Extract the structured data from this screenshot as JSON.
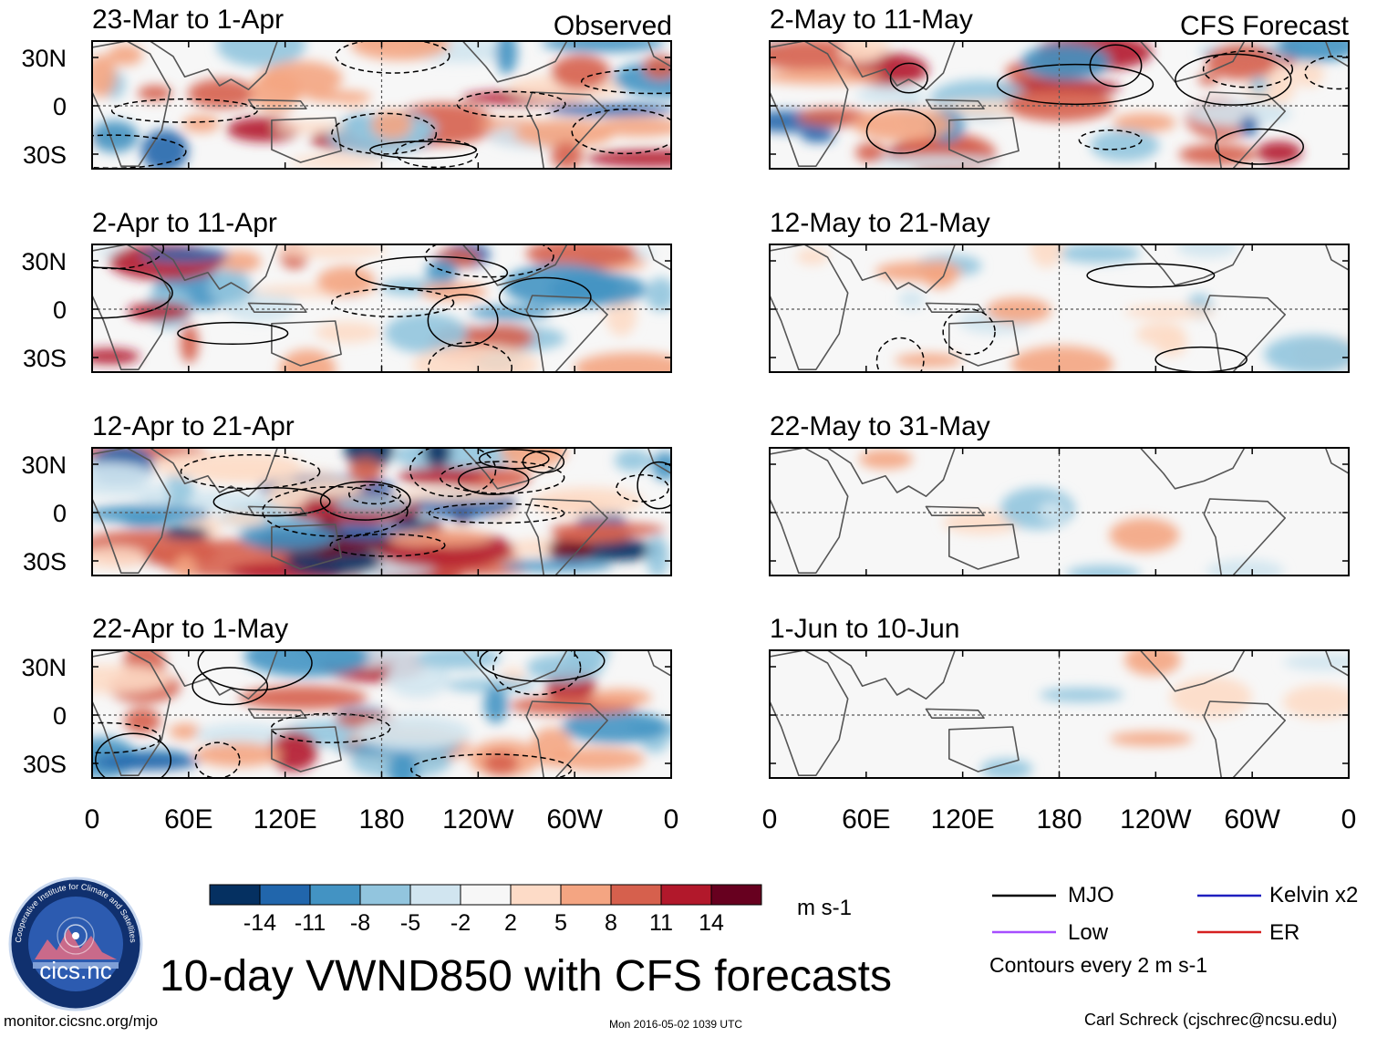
{
  "figure": {
    "title": "10-day VWND850 with CFS forecasts",
    "website": "monitor.cicsnc.org/mjo",
    "timestamp": "Mon 2016-05-02 1039 UTC",
    "author": "Carl Schreck (cjschrec@ncsu.edu)",
    "logo_text": "cics.nc",
    "logo_ring_text": "Cooperative Institute for Climate and Satellites",
    "variable": "VWND850",
    "units": "m s-1"
  },
  "columns": {
    "observed_label": "Observed",
    "forecast_label": "CFS Forecast"
  },
  "axes": {
    "lat_ticks": [
      "30N",
      "0",
      "30S"
    ],
    "lon_ticks": [
      "0",
      "60E",
      "120E",
      "180",
      "120W",
      "60W",
      "0"
    ]
  },
  "colorbar": {
    "labels": [
      "-14",
      "-11",
      "-8",
      "-5",
      "-2",
      "2",
      "5",
      "8",
      "11",
      "14"
    ],
    "colors": [
      "#053061",
      "#2166ac",
      "#4393c3",
      "#92c5de",
      "#d1e5f0",
      "#f7f7f7",
      "#fddbc7",
      "#f4a582",
      "#d6604d",
      "#b2182b",
      "#67001f"
    ]
  },
  "legend": {
    "items": [
      {
        "label": "MJO",
        "color": "#000000"
      },
      {
        "label": "Kelvin x2",
        "color": "#1f1fbf"
      },
      {
        "label": "Low",
        "color": "#a64dff"
      },
      {
        "label": "ER",
        "color": "#d62020"
      }
    ],
    "contour_note": "Contours every 2 m s-1"
  },
  "chart_data": {
    "type": "heatmap",
    "panels": [
      {
        "period": "23-Mar to 1-Apr",
        "kind": "observed",
        "anomaly_strength": "moderate"
      },
      {
        "period": "2-Apr to 11-Apr",
        "kind": "observed",
        "anomaly_strength": "moderate"
      },
      {
        "period": "12-Apr to 21-Apr",
        "kind": "observed",
        "anomaly_strength": "strong"
      },
      {
        "period": "22-Apr to 1-May",
        "kind": "observed",
        "anomaly_strength": "moderate"
      },
      {
        "period": "2-May to 11-May",
        "kind": "forecast",
        "anomaly_strength": "moderate"
      },
      {
        "period": "12-May to 21-May",
        "kind": "forecast",
        "anomaly_strength": "weak"
      },
      {
        "period": "22-May to 31-May",
        "kind": "forecast",
        "anomaly_strength": "very weak"
      },
      {
        "period": "1-Jun to 10-Jun",
        "kind": "forecast",
        "anomaly_strength": "very weak"
      }
    ],
    "lat_range": [
      "40S",
      "40N"
    ],
    "lon_range": [
      "0",
      "360"
    ]
  }
}
